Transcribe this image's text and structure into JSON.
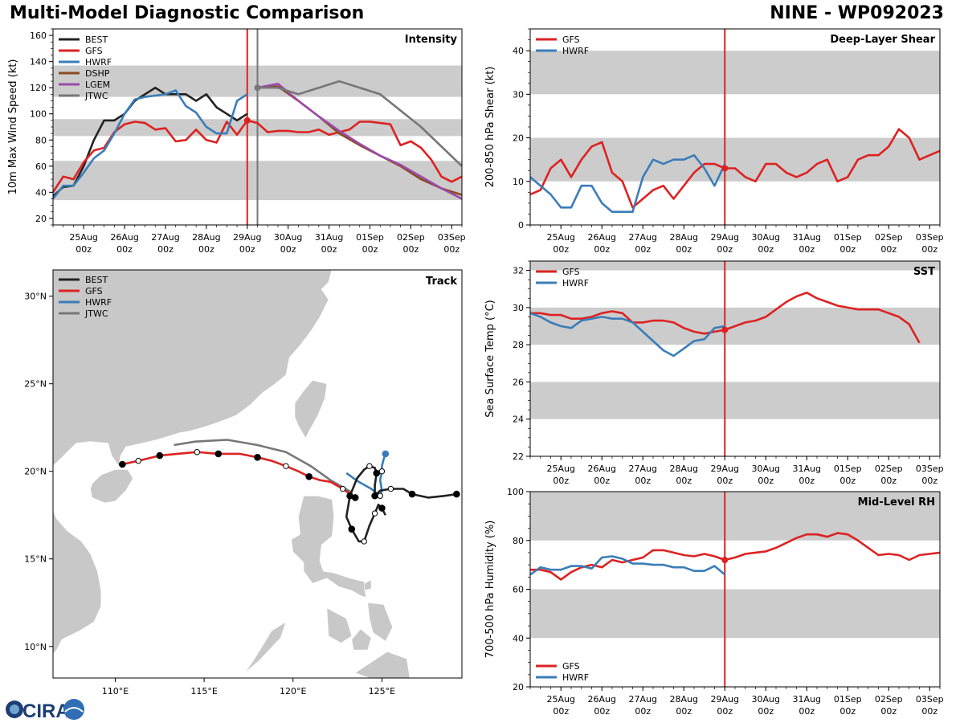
{
  "header": {
    "title_left": "Multi-Model Diagnostic Comparison",
    "title_right": "NINE - WP092023"
  },
  "logo": {
    "text": "CIRA"
  },
  "colors": {
    "BEST": "#222222",
    "GFS": "#dd2222",
    "HWRF": "#3a7db8",
    "DSHP": "#8b4a22",
    "LGEM": "#9b4aa8",
    "JTWC": "#777777",
    "band": "#cccccc",
    "land": "#c8c8c8"
  },
  "time_axis": {
    "labels": [
      [
        "25Aug",
        "00z"
      ],
      [
        "26Aug",
        "00z"
      ],
      [
        "27Aug",
        "00z"
      ],
      [
        "28Aug",
        "00z"
      ],
      [
        "29Aug",
        "00z"
      ],
      [
        "30Aug",
        "00z"
      ],
      [
        "31Aug",
        "00z"
      ],
      [
        "01Sep",
        "00z"
      ],
      [
        "02Sep",
        "00z"
      ],
      [
        "03Sep",
        "00z"
      ]
    ]
  },
  "chart_data": [
    {
      "id": "intensity",
      "type": "line",
      "title": "Intensity",
      "ylabel": "10m Max Wind Speed (kt)",
      "xlim": [
        -0.75,
        9.25
      ],
      "ylim": [
        15,
        165
      ],
      "yticks": [
        20,
        40,
        60,
        80,
        100,
        120,
        140,
        160
      ],
      "bands": [
        [
          34,
          64
        ],
        [
          83,
          96
        ],
        [
          113,
          137
        ]
      ],
      "vlines": [
        {
          "x": 4.0,
          "color": "GFS"
        },
        {
          "x": 4.25,
          "color": "JTWC"
        }
      ],
      "series": [
        {
          "name": "BEST",
          "x": [
            -0.75,
            -0.5,
            -0.25,
            0,
            0.25,
            0.5,
            0.75,
            1,
            1.25,
            1.5,
            1.75,
            2,
            2.25,
            2.5,
            2.75,
            3,
            3.25,
            3.5,
            3.75,
            4.0
          ],
          "y": [
            37,
            44,
            45,
            60,
            80,
            95,
            95,
            100,
            110,
            115,
            120,
            115,
            115,
            115,
            110,
            115,
            105,
            100,
            95,
            100
          ]
        },
        {
          "name": "GFS",
          "x": [
            -0.75,
            -0.5,
            -0.25,
            0,
            0.25,
            0.5,
            0.75,
            1,
            1.25,
            1.5,
            1.75,
            2,
            2.25,
            2.5,
            2.75,
            3,
            3.25,
            3.5,
            3.75,
            4.0,
            4.25,
            4.5,
            4.75,
            5,
            5.25,
            5.5,
            5.75,
            6,
            6.25,
            6.5,
            6.75,
            7,
            7.25,
            7.5,
            7.75,
            8,
            8.25,
            8.5,
            8.75,
            9,
            9.25
          ],
          "y": [
            40,
            52,
            50,
            63,
            72,
            74,
            86,
            92,
            94,
            93,
            88,
            89,
            79,
            80,
            88,
            80,
            78,
            94,
            84,
            95,
            93,
            86,
            87,
            87,
            86,
            86,
            88,
            84,
            86,
            88,
            94,
            94,
            93,
            92,
            76,
            79,
            74,
            65,
            52,
            48,
            52
          ]
        },
        {
          "name": "HWRF",
          "x": [
            -0.75,
            -0.5,
            -0.25,
            0,
            0.25,
            0.5,
            0.75,
            1,
            1.25,
            1.5,
            1.75,
            2,
            2.25,
            2.5,
            2.75,
            3,
            3.25,
            3.5,
            3.75,
            4.0
          ],
          "y": [
            35,
            45,
            45,
            55,
            66,
            72,
            85,
            100,
            111,
            113,
            114,
            115,
            118,
            106,
            101,
            90,
            85,
            85,
            110,
            115
          ]
        },
        {
          "name": "DSHP",
          "x": [
            4.25,
            4.75,
            5.25,
            5.75,
            6.25,
            6.75,
            7.25,
            7.75,
            8.25,
            8.75,
            9.25
          ],
          "y": [
            120,
            121,
            110,
            98,
            85,
            76,
            68,
            60,
            50,
            43,
            38
          ]
        },
        {
          "name": "LGEM",
          "x": [
            4.25,
            4.75,
            5.25,
            5.75,
            6.25,
            6.75,
            7.25,
            7.75,
            8.25,
            8.75,
            9.25
          ],
          "y": [
            120,
            123,
            110,
            98,
            87,
            77,
            68,
            61,
            52,
            43,
            35
          ]
        },
        {
          "name": "JTWC",
          "x": [
            4.25,
            4.75,
            5.25,
            5.75,
            6.25,
            7.25,
            8.25,
            9.25
          ],
          "y": [
            120,
            120,
            115,
            120,
            125,
            115,
            90,
            60
          ]
        }
      ],
      "markers": [
        {
          "series": "GFS",
          "x": 4.0,
          "y": 95
        },
        {
          "series": "JTWC",
          "x": 4.25,
          "y": 120
        }
      ],
      "legend": [
        "BEST",
        "GFS",
        "HWRF",
        "DSHP",
        "LGEM",
        "JTWC"
      ]
    },
    {
      "id": "shear",
      "type": "line",
      "title": "Deep-Layer Shear",
      "ylabel": "200-850 hPa Shear (kt)",
      "xlim": [
        -0.75,
        9.25
      ],
      "ylim": [
        0,
        45
      ],
      "yticks": [
        0,
        10,
        20,
        30,
        40
      ],
      "bands": [
        [
          10,
          20
        ],
        [
          30,
          40
        ]
      ],
      "vlines": [
        {
          "x": 4.0,
          "color": "GFS"
        }
      ],
      "series": [
        {
          "name": "GFS",
          "x": [
            -0.75,
            -0.5,
            -0.25,
            0,
            0.25,
            0.5,
            0.75,
            1,
            1.25,
            1.5,
            1.75,
            2,
            2.25,
            2.5,
            2.75,
            3,
            3.25,
            3.5,
            3.75,
            4.0,
            4.25,
            4.5,
            4.75,
            5,
            5.25,
            5.5,
            5.75,
            6,
            6.25,
            6.5,
            6.75,
            7,
            7.25,
            7.5,
            7.75,
            8,
            8.25,
            8.5,
            8.75,
            9,
            9.25
          ],
          "y": [
            7,
            8,
            13,
            15,
            11,
            15,
            18,
            19,
            12,
            10,
            4,
            6,
            8,
            9,
            6,
            9,
            12,
            14,
            14,
            13,
            13,
            11,
            10,
            14,
            14,
            12,
            11,
            12,
            14,
            15,
            10,
            11,
            15,
            16,
            16,
            18,
            22,
            20,
            15,
            16,
            17
          ]
        },
        {
          "name": "HWRF",
          "x": [
            -0.75,
            -0.5,
            -0.25,
            0,
            0.25,
            0.5,
            0.75,
            1,
            1.25,
            1.5,
            1.75,
            2,
            2.25,
            2.5,
            2.75,
            3,
            3.25,
            3.5,
            3.75,
            4.0
          ],
          "y": [
            11,
            9,
            7,
            4,
            4,
            9,
            9,
            5,
            3,
            3,
            3,
            11,
            15,
            14,
            15,
            15,
            16,
            13,
            9,
            14
          ]
        }
      ],
      "markers": [
        {
          "series": "GFS",
          "x": 4.0,
          "y": 13
        }
      ],
      "legend": [
        "GFS",
        "HWRF"
      ]
    },
    {
      "id": "sst",
      "type": "line",
      "title": "SST",
      "ylabel": "Sea Surface Temp (°C)",
      "xlim": [
        -0.75,
        9.25
      ],
      "ylim": [
        22,
        32.5
      ],
      "yticks": [
        22,
        24,
        26,
        28,
        30,
        32
      ],
      "bands": [
        [
          24,
          26
        ],
        [
          28,
          30
        ],
        [
          32,
          34
        ]
      ],
      "vlines": [
        {
          "x": 4.0,
          "color": "GFS"
        }
      ],
      "series": [
        {
          "name": "GFS",
          "x": [
            -0.75,
            -0.5,
            -0.25,
            0,
            0.25,
            0.5,
            0.75,
            1,
            1.25,
            1.5,
            1.75,
            2,
            2.25,
            2.5,
            2.75,
            3,
            3.25,
            3.5,
            3.75,
            4.0,
            4.25,
            4.5,
            4.75,
            5,
            5.25,
            5.5,
            5.75,
            6,
            6.25,
            6.5,
            6.75,
            7,
            7.25,
            7.5,
            7.75,
            8,
            8.25,
            8.5,
            8.75
          ],
          "y": [
            29.7,
            29.7,
            29.6,
            29.6,
            29.4,
            29.4,
            29.5,
            29.7,
            29.8,
            29.7,
            29.2,
            29.2,
            29.3,
            29.3,
            29.2,
            28.9,
            28.7,
            28.6,
            28.7,
            28.8,
            29.0,
            29.2,
            29.3,
            29.5,
            29.9,
            30.3,
            30.6,
            30.8,
            30.5,
            30.3,
            30.1,
            30.0,
            29.9,
            29.9,
            29.9,
            29.7,
            29.5,
            29.1,
            28.1
          ]
        },
        {
          "name": "HWRF",
          "x": [
            -0.75,
            -0.5,
            -0.25,
            0,
            0.25,
            0.5,
            0.75,
            1,
            1.25,
            1.5,
            1.75,
            2,
            2.25,
            2.5,
            2.75,
            3,
            3.25,
            3.5,
            3.75,
            4.0
          ],
          "y": [
            29.7,
            29.5,
            29.2,
            29.0,
            28.9,
            29.3,
            29.4,
            29.5,
            29.4,
            29.4,
            29.2,
            28.7,
            28.2,
            27.7,
            27.4,
            27.8,
            28.2,
            28.3,
            28.9,
            29.0
          ]
        }
      ],
      "markers": [
        {
          "series": "GFS",
          "x": 4.0,
          "y": 28.8
        }
      ],
      "legend": [
        "GFS",
        "HWRF"
      ]
    },
    {
      "id": "rh",
      "type": "line",
      "title": "Mid-Level RH",
      "ylabel": "700-500 hPa Humidity (%)",
      "xlim": [
        -0.75,
        9.25
      ],
      "ylim": [
        20,
        100
      ],
      "yticks": [
        20,
        40,
        60,
        80,
        100
      ],
      "bands": [
        [
          40,
          60
        ],
        [
          80,
          100
        ]
      ],
      "vlines": [
        {
          "x": 4.0,
          "color": "GFS"
        }
      ],
      "series": [
        {
          "name": "GFS",
          "x": [
            -0.75,
            -0.5,
            -0.25,
            0,
            0.25,
            0.5,
            0.75,
            1,
            1.25,
            1.5,
            1.75,
            2,
            2.25,
            2.5,
            2.75,
            3,
            3.25,
            3.5,
            3.75,
            4.0,
            4.25,
            4.5,
            4.75,
            5,
            5.25,
            5.5,
            5.75,
            6,
            6.25,
            6.5,
            6.75,
            7,
            7.25,
            7.5,
            7.75,
            8,
            8.25,
            8.5,
            8.75,
            9,
            9.25
          ],
          "y": [
            68,
            68,
            67,
            64,
            67,
            69,
            70,
            69,
            72,
            71,
            72,
            73,
            76,
            76,
            75,
            74,
            73.5,
            74.5,
            73.5,
            72,
            73,
            74.5,
            75,
            75.5,
            77,
            79,
            81,
            82.5,
            82.5,
            81.5,
            83,
            82.5,
            80,
            77,
            74,
            74.5,
            74,
            72,
            74,
            74.5,
            75
          ]
        },
        {
          "name": "HWRF",
          "x": [
            -0.75,
            -0.5,
            -0.25,
            0,
            0.25,
            0.5,
            0.75,
            1,
            1.25,
            1.5,
            1.75,
            2,
            2.25,
            2.5,
            2.75,
            3,
            3.25,
            3.5,
            3.75,
            4.0
          ],
          "y": [
            66,
            69,
            68,
            68,
            69.5,
            69.5,
            68.5,
            73,
            73.5,
            72.5,
            70.5,
            70.5,
            70,
            70,
            69,
            69,
            67.5,
            67.5,
            69.5,
            66
          ]
        }
      ],
      "markers": [
        {
          "series": "GFS",
          "x": 4.0,
          "y": 72
        }
      ],
      "legend": [
        "GFS",
        "HWRF"
      ]
    },
    {
      "id": "track",
      "type": "map",
      "title": "Track",
      "lon_range": [
        106.5,
        129.5
      ],
      "lat_range": [
        8.2,
        31.5
      ],
      "xticks": [
        110,
        115,
        120,
        125
      ],
      "xtick_labels": [
        "110°E",
        "115°E",
        "120°E",
        "125°E"
      ],
      "yticks": [
        10,
        15,
        20,
        25,
        30
      ],
      "ytick_labels": [
        "10°N",
        "15°N",
        "20°N",
        "25°N",
        "30°N"
      ],
      "legend": [
        "BEST",
        "GFS",
        "HWRF",
        "JTWC"
      ],
      "series": [
        {
          "name": "BEST",
          "lon": [
            129.2,
            128.5,
            127.6,
            126.7,
            126.2,
            125.5,
            124.9,
            124.6,
            124.6,
            124.7,
            124.6,
            124.3,
            124.0,
            123.6,
            123.2,
            123.0,
            123.3,
            123.7,
            124.0,
            124.3,
            124.6,
            124.8,
            125.0,
            125.2
          ],
          "lat": [
            18.7,
            18.6,
            18.5,
            18.7,
            19.0,
            19.0,
            18.9,
            18.6,
            19.2,
            19.9,
            20.2,
            20.3,
            20.1,
            19.6,
            18.6,
            17.4,
            16.7,
            16.0,
            16.0,
            16.9,
            17.6,
            18.1,
            17.9,
            17.5
          ],
          "dots": [
            0,
            3,
            5,
            7,
            9,
            11,
            14,
            16,
            18,
            20,
            22
          ],
          "filled": [
            0,
            3,
            7,
            9,
            14,
            16,
            22
          ]
        },
        {
          "name": "GFS",
          "lon": [
            123.5,
            122.8,
            122.1,
            121.5,
            120.9,
            120.3,
            119.6,
            118.8,
            118.0,
            117.0,
            115.8,
            114.6,
            113.5,
            112.5,
            111.3,
            110.4
          ],
          "lat": [
            18.5,
            19.0,
            19.4,
            19.5,
            19.7,
            20.0,
            20.3,
            20.6,
            20.8,
            21.0,
            21.0,
            21.1,
            21.0,
            20.9,
            20.6,
            20.4
          ],
          "dots": [
            1,
            4,
            6,
            8,
            10,
            11,
            13,
            14,
            15
          ],
          "filled": [
            0,
            4,
            8,
            10,
            13,
            15
          ]
        },
        {
          "name": "HWRF",
          "lon": [
            123.0,
            123.7,
            124.4,
            124.9,
            125.0,
            124.9,
            125.0,
            125.0,
            125.1,
            125.2
          ],
          "lat": [
            19.9,
            19.4,
            19.0,
            18.6,
            18.9,
            19.5,
            20.0,
            20.3,
            20.7,
            21.0
          ],
          "dots": [
            3,
            6
          ],
          "filled": [
            9
          ]
        },
        {
          "name": "JTWC",
          "lon": [
            123.3,
            122.1,
            121.0,
            119.6,
            118.0,
            116.3,
            114.5,
            113.3
          ],
          "lat": [
            18.8,
            19.5,
            20.3,
            21.1,
            21.5,
            21.8,
            21.7,
            21.5
          ],
          "dots": [],
          "filled": []
        }
      ]
    }
  ]
}
